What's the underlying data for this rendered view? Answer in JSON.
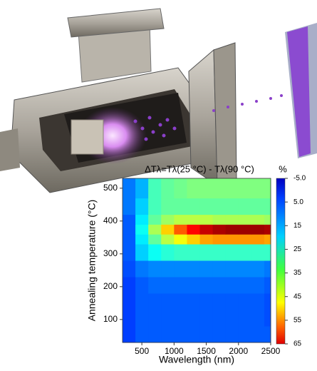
{
  "chart_data": {
    "type": "heatmap",
    "title": "ΔTλ=Tλ(25 °C) - Tλ(90 °C)",
    "colorbar_label": "%",
    "x_label": "Wavelength (nm)",
    "y_label": "Annealing temperature (°C)",
    "xbins": [
      200,
      400,
      600,
      800,
      1000,
      1200,
      1400,
      1600,
      1800,
      2000,
      2200,
      2400,
      2500
    ],
    "ybins": [
      30,
      80,
      130,
      180,
      230,
      280,
      330,
      360,
      390,
      420,
      470,
      530
    ],
    "z": [
      [
        8,
        10,
        10,
        10,
        10,
        10,
        10,
        10,
        10,
        10,
        10,
        10
      ],
      [
        8,
        10,
        10,
        10,
        10,
        10,
        10,
        10,
        10,
        10,
        10,
        9
      ],
      [
        8,
        10,
        10,
        10,
        10,
        10,
        10,
        10,
        10,
        10,
        10,
        9
      ],
      [
        8,
        10,
        11,
        11,
        11,
        11,
        11,
        11,
        11,
        11,
        11,
        10
      ],
      [
        9,
        12,
        13,
        13,
        13,
        13,
        13,
        13,
        13,
        13,
        13,
        12
      ],
      [
        10,
        18,
        22,
        24,
        25,
        25,
        25,
        25,
        25,
        25,
        25,
        25
      ],
      [
        10,
        20,
        28,
        34,
        38,
        42,
        45,
        46,
        46,
        46,
        46,
        45
      ],
      [
        10,
        22,
        33,
        42,
        50,
        56,
        60,
        62,
        63,
        63,
        63,
        62
      ],
      [
        10,
        20,
        28,
        32,
        34,
        34,
        34,
        33,
        33,
        33,
        33,
        32
      ],
      [
        12,
        18,
        26,
        28,
        28,
        28,
        28,
        28,
        28,
        28,
        28,
        28
      ],
      [
        12,
        16,
        26,
        28,
        29,
        30,
        30,
        30,
        30,
        30,
        30,
        30
      ]
    ],
    "xlim": [
      200,
      2500
    ],
    "ylim": [
      30,
      530
    ],
    "xticks": [
      500,
      1000,
      1500,
      2000,
      2500
    ],
    "yticks": [
      100,
      200,
      300,
      400,
      500
    ],
    "zlim": [
      -5,
      65
    ],
    "zticks": [
      {
        "value": -5,
        "label": "-5.0"
      },
      {
        "value": 5,
        "label": "5.0"
      },
      15,
      25,
      35,
      45,
      55,
      65
    ],
    "colormap": "jet"
  }
}
